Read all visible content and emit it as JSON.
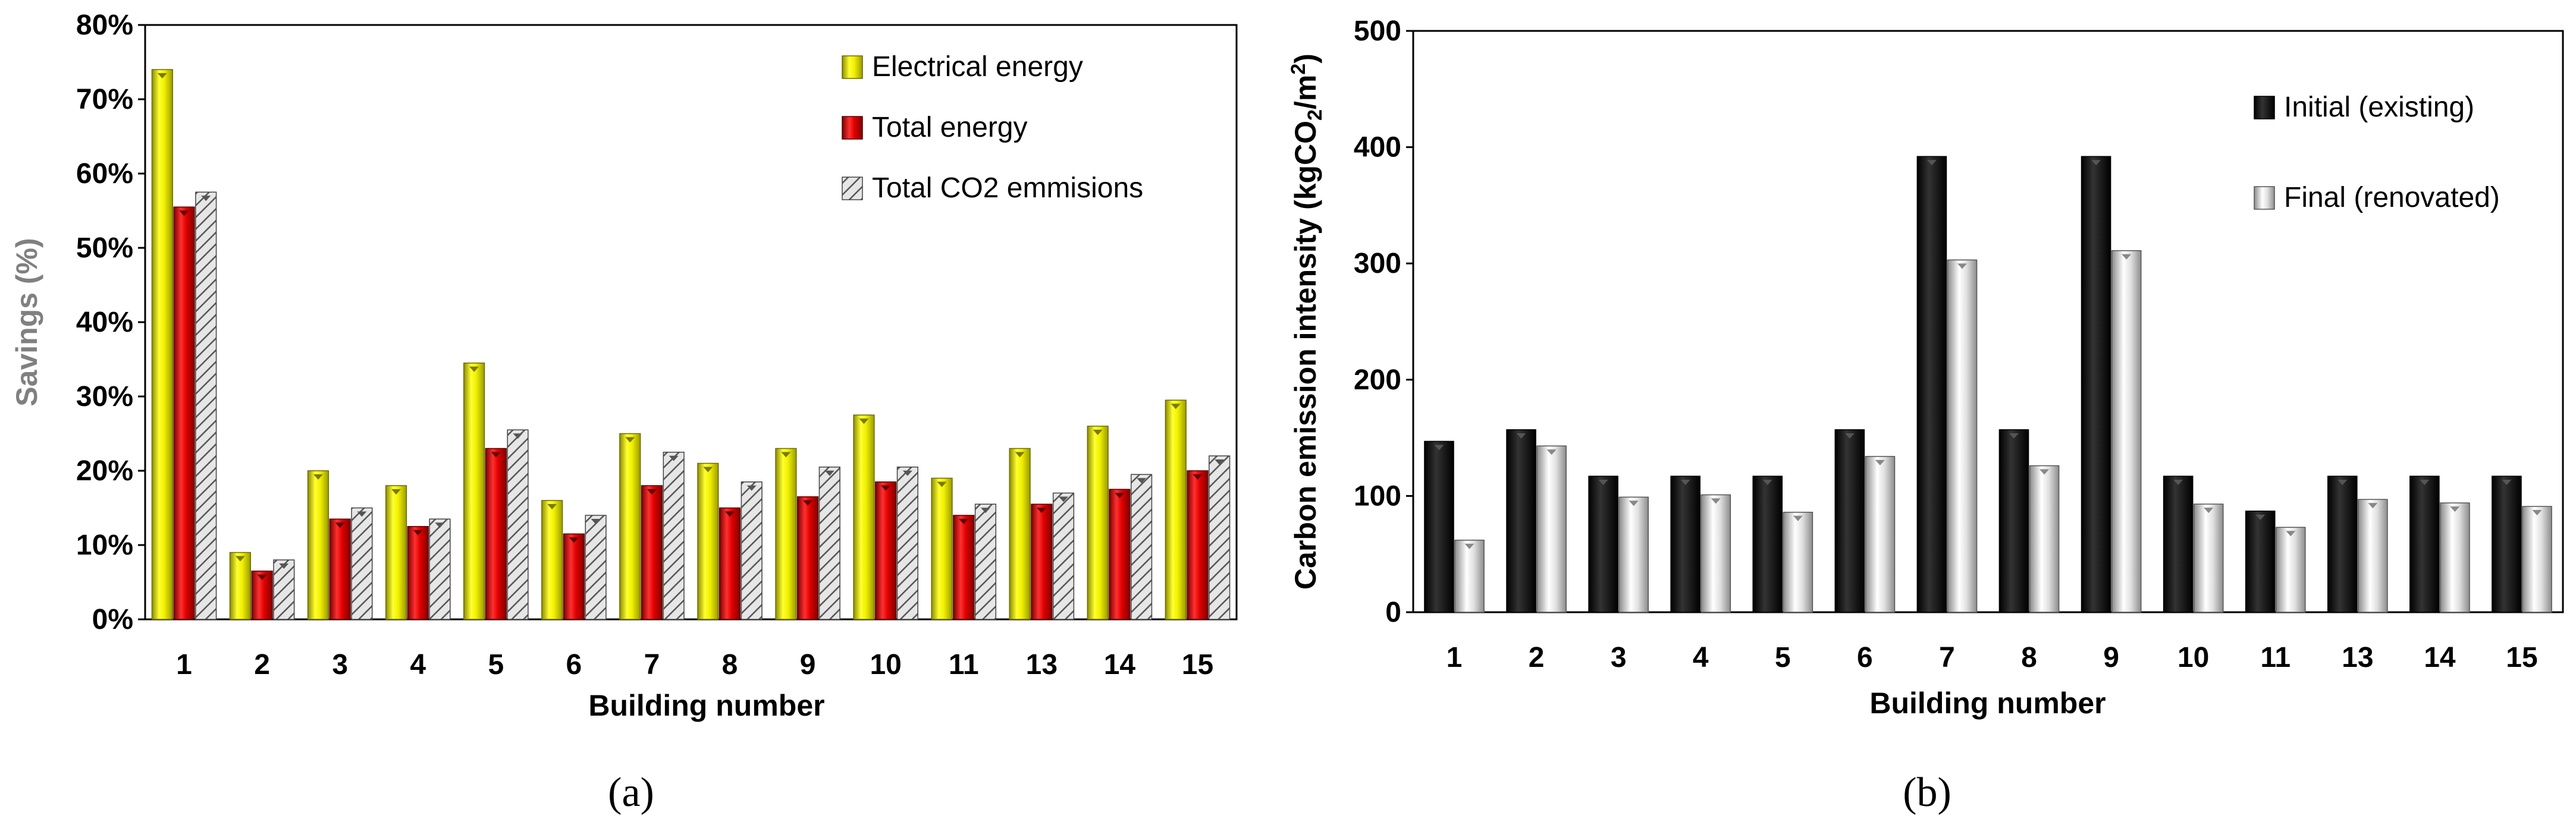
{
  "chart_data": [
    {
      "panel_label": "(a)",
      "type": "bar",
      "xlabel": "Building number",
      "ylabel": "Savings (%)",
      "ylim": [
        0,
        80
      ],
      "yticks": [
        "0%",
        "10%",
        "20%",
        "30%",
        "40%",
        "50%",
        "60%",
        "70%",
        "80%"
      ],
      "legend_position": "top-right",
      "categories": [
        "1",
        "2",
        "3",
        "4",
        "5",
        "6",
        "7",
        "8",
        "9",
        "10",
        "11",
        "13",
        "14",
        "15"
      ],
      "series": [
        {
          "name": "Electrical energy",
          "color": "#f0f000",
          "values": [
            74,
            9,
            20,
            18,
            34.5,
            16,
            25,
            21,
            23,
            27.5,
            19,
            23,
            26,
            29.5
          ]
        },
        {
          "name": "Total energy",
          "color": "#e00000",
          "values": [
            55.5,
            6.5,
            13.5,
            12.5,
            23,
            11.5,
            18,
            15,
            16.5,
            18.5,
            14,
            15.5,
            17.5,
            20
          ]
        },
        {
          "name": "Total CO2 emmisions",
          "color": "#b0b0b0",
          "values": [
            57.5,
            8,
            15,
            13.5,
            25.5,
            14,
            22.5,
            18.5,
            20.5,
            20.5,
            15.5,
            17,
            19.5,
            22
          ]
        }
      ]
    },
    {
      "panel_label": "(b)",
      "type": "bar",
      "xlabel": "Building number",
      "ylabel": "Carbon emission intensity (kgCO",
      "ylabel_sub": "2",
      "ylabel_mid": "/m",
      "ylabel_sup": "2",
      "ylabel_end": ")",
      "ylim": [
        0,
        500
      ],
      "yticks": [
        "0",
        "100",
        "200",
        "300",
        "400",
        "500"
      ],
      "legend_position": "top-right",
      "categories": [
        "1",
        "2",
        "3",
        "4",
        "5",
        "6",
        "7",
        "8",
        "9",
        "10",
        "11",
        "13",
        "14",
        "15"
      ],
      "series": [
        {
          "name": "Initial (existing)",
          "color": "#000000",
          "values": [
            147,
            157,
            117,
            117,
            117,
            157,
            392,
            157,
            392,
            117,
            87,
            117,
            117,
            117
          ]
        },
        {
          "name": "Final (renovated)",
          "color": "#c8c8c8",
          "values": [
            62,
            143,
            99,
            101,
            86,
            134,
            303,
            126,
            311,
            93,
            73,
            97,
            94,
            91
          ]
        }
      ]
    }
  ]
}
